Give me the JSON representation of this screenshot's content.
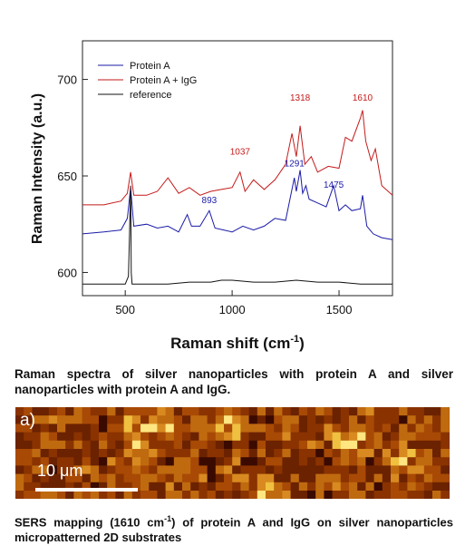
{
  "chart_data": {
    "type": "line",
    "xlabel": "Raman shift (cm",
    "xlabel_sup": "-1",
    "xlabel_end": ")",
    "ylabel": "Raman Intensity (a.u.)",
    "xlim": [
      300,
      1750
    ],
    "ylim": [
      588,
      720
    ],
    "x_ticks": [
      500,
      1000,
      1500
    ],
    "y_ticks": [
      600,
      650,
      700
    ],
    "legend_position": "top-left",
    "series": [
      {
        "name": "Protein A",
        "color": "#1a1aa6",
        "x": [
          300,
          400,
          480,
          510,
          525,
          540,
          600,
          650,
          700,
          750,
          790,
          810,
          850,
          893,
          920,
          960,
          1000,
          1050,
          1100,
          1150,
          1200,
          1250,
          1280,
          1291,
          1300,
          1318,
          1330,
          1345,
          1360,
          1400,
          1440,
          1475,
          1500,
          1530,
          1560,
          1600,
          1610,
          1630,
          1660,
          1700,
          1750
        ],
        "y": [
          620,
          621,
          622,
          628,
          644,
          624,
          625,
          623,
          624,
          621,
          630,
          624,
          624,
          632,
          623,
          622,
          621,
          624,
          622,
          624,
          628,
          627,
          643,
          649,
          642,
          653,
          641,
          645,
          638,
          636,
          634,
          645,
          632,
          635,
          632,
          633,
          640,
          624,
          620,
          618,
          617
        ]
      },
      {
        "name": "Protein A + IgG",
        "color": "#c41a1a",
        "x": [
          300,
          400,
          480,
          510,
          525,
          540,
          600,
          650,
          700,
          750,
          800,
          850,
          900,
          950,
          1000,
          1037,
          1060,
          1100,
          1150,
          1200,
          1250,
          1280,
          1300,
          1318,
          1340,
          1370,
          1400,
          1450,
          1500,
          1530,
          1560,
          1600,
          1610,
          1625,
          1650,
          1670,
          1700,
          1750
        ],
        "y": [
          635,
          635,
          637,
          641,
          652,
          640,
          640,
          642,
          649,
          641,
          644,
          640,
          642,
          643,
          644,
          652,
          642,
          648,
          643,
          648,
          656,
          672,
          660,
          676,
          656,
          660,
          652,
          655,
          654,
          670,
          668,
          680,
          684,
          668,
          658,
          664,
          645,
          640
        ]
      },
      {
        "name": "reference",
        "color": "#111111",
        "x": [
          300,
          400,
          500,
          515,
          520,
          525,
          528,
          532,
          540,
          600,
          700,
          800,
          900,
          950,
          1000,
          1100,
          1200,
          1300,
          1400,
          1500,
          1600,
          1700,
          1750
        ],
        "y": [
          594,
          594,
          594,
          598,
          620,
          645,
          600,
          594,
          594,
          594,
          594,
          595,
          595,
          596,
          596,
          595,
          595,
          596,
          595,
          595,
          594,
          594,
          594
        ]
      }
    ],
    "annotations": [
      {
        "text": "1037",
        "x": 1037,
        "y": 661,
        "color": "#c41a1a"
      },
      {
        "text": "1318",
        "x": 1318,
        "y": 689,
        "color": "#c41a1a"
      },
      {
        "text": "1610",
        "x": 1610,
        "y": 689,
        "color": "#c41a1a"
      },
      {
        "text": "1291",
        "x": 1291,
        "y": 655,
        "color": "#1a1aa6"
      },
      {
        "text": "1475",
        "x": 1475,
        "y": 644,
        "color": "#1a1aa6"
      },
      {
        "text": "893",
        "x": 893,
        "y": 636,
        "color": "#1a1aa6"
      }
    ]
  },
  "captions": {
    "spectra": "Raman spectra of silver nanoparticles with protein A and silver nanoparticles with protein A and IgG.",
    "mapping_before": "SERS mapping (1610 cm",
    "mapping_sup": "-1",
    "mapping_after": ") of protein A and IgG on silver nanoparticles micropatterned 2D substrates"
  },
  "map": {
    "panel_label": "a)",
    "scale_label": "10 μm",
    "colors": [
      "#3a0a00",
      "#6b2200",
      "#8a3300",
      "#a84a05",
      "#c06a10",
      "#d88a20",
      "#f0c040",
      "#ffe680"
    ]
  }
}
